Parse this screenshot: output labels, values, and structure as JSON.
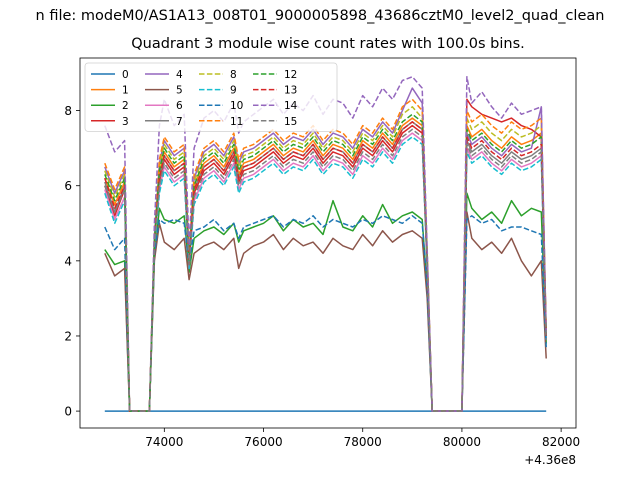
{
  "chart_data": {
    "type": "line",
    "suptitle": "n file: modeM0/AS1A13_008T01_9000005898_43686cztM0_level2_quad_clean",
    "title": "Quadrant 3 module wise count rates with 100.0s bins.",
    "xlabel": "",
    "ylabel": "",
    "x_offset_label": "+4.36e8",
    "xlim": [
      72300,
      82300
    ],
    "ylim": [
      -0.45,
      9.4
    ],
    "xticks": [
      74000,
      76000,
      78000,
      80000,
      82000
    ],
    "yticks": [
      0,
      2,
      4,
      6,
      8
    ],
    "grid": false,
    "legend": {
      "location": "upper-left",
      "columns": 4
    },
    "x": [
      72800,
      73000,
      73200,
      73300,
      73500,
      73700,
      73800,
      73900,
      74000,
      74200,
      74400,
      74500,
      74600,
      74800,
      75000,
      75200,
      75400,
      75500,
      75600,
      75800,
      76000,
      76200,
      76400,
      76600,
      76800,
      77000,
      77200,
      77400,
      77600,
      77800,
      78000,
      78200,
      78400,
      78600,
      78800,
      79000,
      79200,
      79300,
      79400,
      79600,
      79800,
      80000,
      80100,
      80200,
      80400,
      80600,
      80800,
      81000,
      81200,
      81400,
      81600,
      81700
    ],
    "series": [
      {
        "name": "0",
        "color": "#1f77b4",
        "style": "solid",
        "values": [
          0,
          0,
          0,
          0,
          0,
          0,
          0,
          0,
          0,
          0,
          0,
          0,
          0,
          0,
          0,
          0,
          0,
          0,
          0,
          0,
          0,
          0,
          0,
          0,
          0,
          0,
          0,
          0,
          0,
          0,
          0,
          0,
          0,
          0,
          0,
          0,
          0,
          0,
          0,
          0,
          0,
          0,
          0,
          0,
          0,
          0,
          0,
          0,
          0,
          0,
          0,
          0
        ]
      },
      {
        "name": "1",
        "color": "#ff7f0e",
        "style": "solid",
        "values": [
          6.2,
          5.5,
          6.1,
          0,
          0,
          0,
          4.5,
          6.3,
          6.9,
          6.5,
          6.7,
          4.0,
          6.0,
          6.6,
          6.8,
          6.5,
          7.0,
          6.3,
          6.6,
          6.7,
          6.9,
          7.1,
          6.8,
          7.0,
          6.9,
          7.2,
          6.8,
          7.1,
          7.0,
          6.7,
          7.2,
          7.0,
          7.4,
          7.1,
          7.6,
          7.8,
          7.6,
          4.0,
          0,
          0,
          0,
          0,
          7.6,
          7.3,
          7.5,
          7.2,
          7.0,
          7.3,
          7.1,
          7.2,
          7.4,
          2.0
        ]
      },
      {
        "name": "2",
        "color": "#2ca02c",
        "style": "solid",
        "values": [
          4.3,
          3.9,
          4.0,
          0,
          0,
          0,
          4.1,
          5.4,
          5.1,
          5.0,
          5.2,
          3.7,
          4.6,
          4.8,
          4.9,
          4.7,
          5.0,
          4.5,
          4.8,
          4.9,
          5.0,
          5.2,
          4.8,
          5.1,
          4.9,
          5.0,
          4.7,
          5.6,
          4.9,
          4.8,
          5.2,
          4.9,
          5.5,
          5.0,
          5.2,
          5.3,
          5.1,
          3.2,
          0,
          0,
          0,
          0,
          5.8,
          5.4,
          5.1,
          5.3,
          5.0,
          5.6,
          5.2,
          5.4,
          5.3,
          1.8
        ]
      },
      {
        "name": "3",
        "color": "#d62728",
        "style": "solid",
        "values": [
          6.0,
          5.2,
          5.9,
          0,
          0,
          0,
          4.4,
          6.1,
          6.7,
          6.3,
          6.5,
          3.9,
          5.8,
          6.4,
          6.6,
          6.3,
          6.8,
          6.1,
          6.4,
          6.5,
          6.7,
          6.9,
          6.6,
          6.8,
          6.7,
          7.0,
          6.6,
          6.9,
          6.8,
          6.5,
          7.0,
          6.8,
          7.2,
          6.9,
          7.4,
          7.6,
          7.4,
          3.9,
          0,
          0,
          0,
          0,
          8.3,
          8.1,
          7.9,
          7.8,
          7.7,
          7.8,
          7.6,
          7.5,
          7.3,
          2.0
        ]
      },
      {
        "name": "4",
        "color": "#9467bd",
        "style": "solid",
        "values": [
          6.5,
          5.8,
          6.4,
          0,
          0,
          0,
          4.6,
          6.6,
          7.2,
          6.8,
          7.0,
          4.1,
          6.2,
          6.9,
          7.1,
          6.8,
          7.3,
          6.6,
          6.9,
          7.0,
          7.2,
          7.4,
          7.1,
          7.3,
          7.2,
          7.5,
          7.1,
          7.4,
          7.3,
          7.0,
          7.5,
          7.3,
          7.7,
          7.4,
          8.0,
          8.6,
          8.2,
          4.1,
          0,
          0,
          0,
          0,
          7.4,
          7.1,
          7.3,
          7.0,
          6.8,
          7.1,
          6.9,
          7.0,
          8.1,
          2.0
        ]
      },
      {
        "name": "5",
        "color": "#8c564b",
        "style": "solid",
        "values": [
          4.2,
          3.6,
          3.8,
          0,
          0,
          0,
          4.0,
          5.0,
          4.5,
          4.3,
          4.6,
          3.5,
          4.2,
          4.4,
          4.5,
          4.3,
          4.6,
          3.8,
          4.2,
          4.4,
          4.5,
          4.7,
          4.3,
          4.6,
          4.4,
          4.5,
          4.2,
          4.6,
          4.4,
          4.3,
          4.7,
          4.4,
          4.8,
          4.5,
          4.7,
          4.8,
          4.6,
          3.0,
          0,
          0,
          0,
          0,
          5.3,
          4.6,
          4.3,
          4.5,
          4.2,
          4.6,
          4.0,
          3.6,
          4.0,
          1.4
        ]
      },
      {
        "name": "6",
        "color": "#e377c2",
        "style": "solid",
        "values": [
          5.9,
          5.1,
          5.7,
          0,
          0,
          0,
          4.4,
          5.9,
          6.5,
          6.1,
          6.3,
          3.8,
          5.6,
          6.2,
          6.4,
          6.1,
          6.6,
          5.9,
          6.2,
          6.3,
          6.5,
          6.7,
          6.4,
          6.6,
          6.5,
          6.8,
          6.4,
          6.7,
          6.6,
          6.3,
          6.8,
          6.6,
          7.0,
          6.7,
          7.2,
          7.4,
          7.2,
          3.8,
          0,
          0,
          0,
          0,
          7.0,
          6.7,
          6.9,
          6.6,
          6.4,
          6.7,
          6.5,
          6.6,
          6.8,
          1.9
        ]
      },
      {
        "name": "7",
        "color": "#7f7f7f",
        "style": "solid",
        "values": [
          6.1,
          5.3,
          6.0,
          0,
          0,
          0,
          4.5,
          6.2,
          6.8,
          6.4,
          6.6,
          3.9,
          5.9,
          6.5,
          6.7,
          6.4,
          6.9,
          6.2,
          6.5,
          6.6,
          6.8,
          7.0,
          6.7,
          6.9,
          6.8,
          7.1,
          6.7,
          7.0,
          6.9,
          6.6,
          7.1,
          6.9,
          7.3,
          7.0,
          7.5,
          7.7,
          7.5,
          3.9,
          0,
          0,
          0,
          0,
          7.2,
          6.9,
          7.1,
          6.8,
          6.6,
          6.9,
          6.7,
          6.8,
          7.0,
          2.0
        ]
      },
      {
        "name": "8",
        "color": "#bcbd22",
        "style": "dashed",
        "values": [
          6.4,
          5.7,
          6.3,
          0,
          0,
          0,
          4.6,
          6.5,
          7.1,
          6.7,
          6.9,
          4.1,
          6.1,
          6.8,
          7.0,
          6.7,
          7.2,
          6.5,
          6.8,
          6.9,
          7.1,
          7.3,
          7.0,
          7.2,
          7.1,
          7.4,
          7.0,
          7.3,
          7.2,
          6.9,
          7.4,
          7.2,
          7.6,
          7.3,
          7.9,
          8.1,
          7.8,
          4.1,
          0,
          0,
          0,
          0,
          7.8,
          7.5,
          7.7,
          7.4,
          7.2,
          7.5,
          7.3,
          7.4,
          7.6,
          2.1
        ]
      },
      {
        "name": "9",
        "color": "#17becf",
        "style": "dashed",
        "values": [
          5.8,
          5.0,
          5.6,
          0,
          0,
          0,
          4.3,
          5.8,
          6.4,
          6.0,
          6.2,
          3.8,
          5.5,
          6.1,
          6.3,
          6.0,
          6.5,
          5.8,
          6.1,
          6.2,
          6.4,
          6.6,
          6.3,
          6.5,
          6.4,
          6.7,
          6.3,
          6.6,
          6.5,
          6.2,
          6.7,
          6.5,
          6.9,
          6.6,
          7.1,
          7.3,
          7.1,
          3.8,
          0,
          0,
          0,
          0,
          6.9,
          6.6,
          6.8,
          6.5,
          6.3,
          6.6,
          6.4,
          6.5,
          6.7,
          1.9
        ]
      },
      {
        "name": "10",
        "color": "#1f77b4",
        "style": "dashed",
        "values": [
          4.9,
          4.3,
          4.6,
          0,
          0,
          0,
          4.2,
          5.1,
          5.0,
          5.1,
          5.0,
          3.9,
          4.8,
          4.9,
          5.1,
          4.8,
          5.0,
          4.6,
          4.9,
          5.0,
          5.1,
          5.2,
          4.9,
          5.1,
          5.0,
          5.2,
          4.9,
          5.1,
          5.0,
          4.9,
          5.1,
          5.0,
          5.2,
          5.1,
          5.0,
          5.2,
          5.0,
          3.3,
          0,
          0,
          0,
          0,
          5.1,
          5.2,
          5.0,
          5.1,
          4.8,
          4.9,
          4.9,
          4.8,
          4.7,
          1.7
        ]
      },
      {
        "name": "11",
        "color": "#ff7f0e",
        "style": "dashed",
        "values": [
          6.6,
          5.9,
          6.5,
          0,
          0,
          0,
          4.7,
          6.7,
          7.3,
          6.9,
          7.1,
          4.2,
          6.3,
          7.0,
          7.2,
          6.9,
          7.4,
          6.7,
          7.0,
          7.1,
          7.3,
          7.5,
          7.2,
          7.4,
          7.3,
          7.6,
          7.2,
          7.5,
          7.4,
          7.1,
          7.6,
          7.4,
          7.8,
          7.5,
          8.1,
          8.3,
          8.0,
          4.2,
          0,
          0,
          0,
          0,
          8.0,
          7.7,
          7.9,
          7.6,
          7.4,
          7.7,
          7.5,
          7.6,
          7.8,
          2.1
        ]
      },
      {
        "name": "12",
        "color": "#2ca02c",
        "style": "dashed",
        "values": [
          6.3,
          5.6,
          6.2,
          0,
          0,
          0,
          4.5,
          6.4,
          7.0,
          6.6,
          6.8,
          4.0,
          6.0,
          6.7,
          6.9,
          6.6,
          7.1,
          6.4,
          6.7,
          6.8,
          7.0,
          7.2,
          6.9,
          7.1,
          7.0,
          7.3,
          6.9,
          7.2,
          7.1,
          6.8,
          7.3,
          7.1,
          7.5,
          7.2,
          7.7,
          7.9,
          7.7,
          4.0,
          0,
          0,
          0,
          0,
          7.5,
          7.2,
          7.4,
          7.1,
          6.9,
          7.2,
          7.0,
          7.1,
          7.3,
          2.0
        ]
      },
      {
        "name": "13",
        "color": "#d62728",
        "style": "dashed",
        "values": [
          6.2,
          5.4,
          6.0,
          0,
          0,
          0,
          4.5,
          6.2,
          6.8,
          6.4,
          6.6,
          3.9,
          5.9,
          6.5,
          6.7,
          6.4,
          6.9,
          6.2,
          6.5,
          6.6,
          6.8,
          7.0,
          6.7,
          6.9,
          6.8,
          7.1,
          6.7,
          7.0,
          6.9,
          6.6,
          7.1,
          6.9,
          7.3,
          7.0,
          7.5,
          7.7,
          7.5,
          3.9,
          0,
          0,
          0,
          0,
          7.3,
          7.0,
          7.2,
          6.9,
          6.7,
          7.0,
          6.8,
          6.9,
          7.1,
          2.0
        ]
      },
      {
        "name": "14",
        "color": "#9467bd",
        "style": "dashed",
        "values": [
          7.6,
          6.9,
          7.2,
          0,
          0,
          0,
          5.0,
          7.6,
          8.3,
          7.6,
          7.9,
          4.4,
          7.0,
          7.8,
          8.0,
          7.7,
          8.2,
          7.4,
          7.7,
          7.9,
          8.1,
          8.3,
          7.9,
          8.2,
          8.0,
          8.4,
          7.9,
          8.3,
          8.2,
          7.8,
          8.4,
          8.1,
          8.6,
          8.3,
          8.8,
          8.9,
          8.6,
          4.3,
          0,
          0,
          0,
          0,
          8.9,
          8.2,
          8.5,
          8.1,
          7.8,
          8.2,
          7.9,
          8.0,
          8.1,
          2.1
        ]
      },
      {
        "name": "15",
        "color": "#7f7f7f",
        "style": "dashed",
        "values": [
          6.0,
          5.3,
          5.9,
          0,
          0,
          0,
          4.4,
          6.0,
          6.6,
          6.2,
          6.4,
          3.9,
          5.7,
          6.3,
          6.5,
          6.2,
          6.7,
          6.0,
          6.3,
          6.4,
          6.6,
          6.8,
          6.5,
          6.7,
          6.6,
          6.9,
          6.5,
          6.8,
          6.7,
          6.4,
          6.9,
          6.7,
          7.1,
          6.8,
          7.3,
          7.5,
          7.3,
          3.8,
          0,
          0,
          0,
          0,
          7.1,
          6.8,
          7.0,
          6.7,
          6.5,
          6.8,
          6.6,
          6.7,
          6.9,
          1.9
        ]
      }
    ]
  }
}
